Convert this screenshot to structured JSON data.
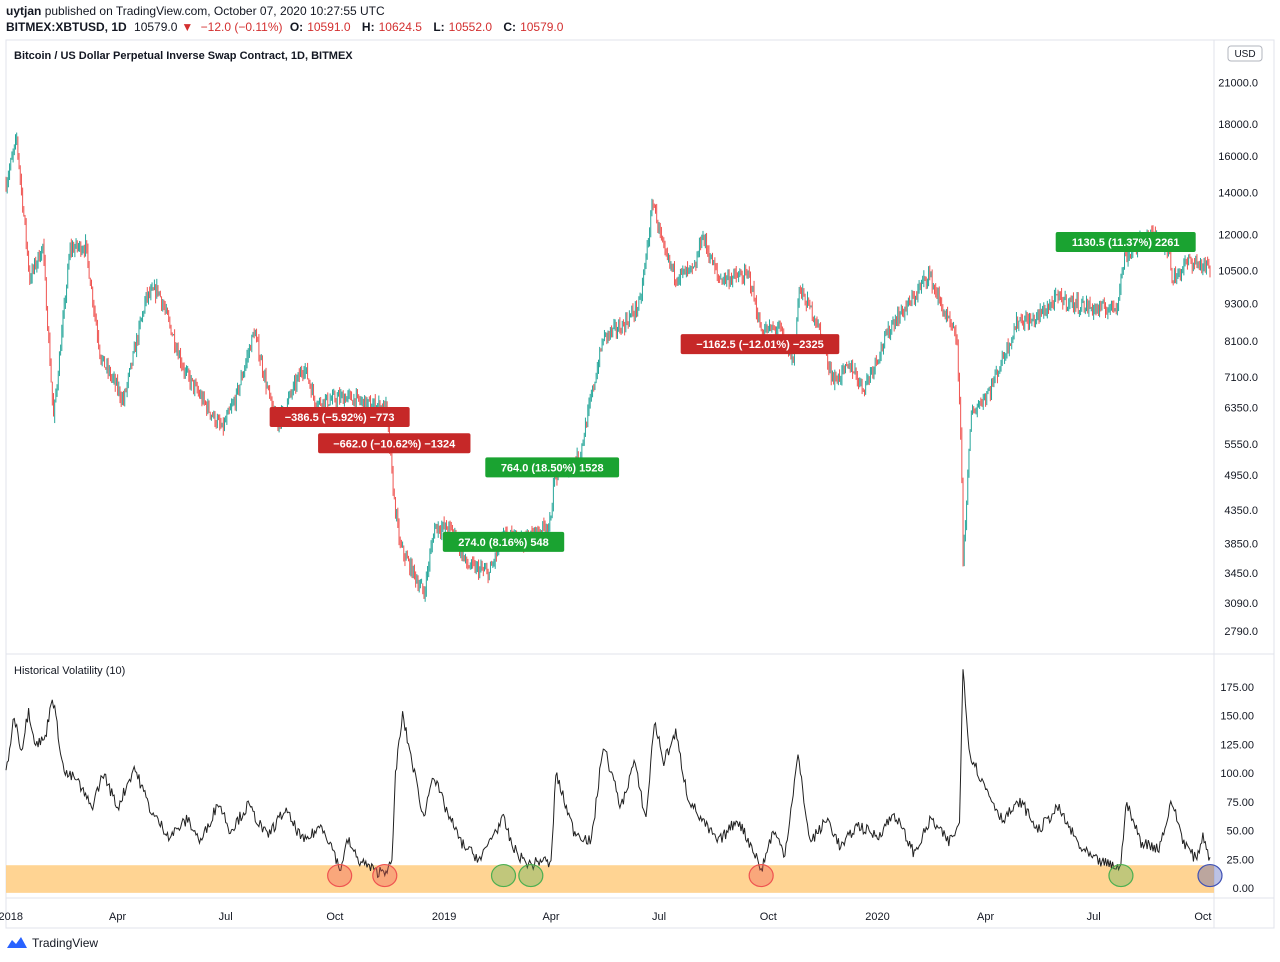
{
  "header": {
    "author": "uytjan",
    "published_text": "published on TradingView.com, October 07, 2020 10:27:55 UTC",
    "symbol": "BITMEX:XBTUSD, 1D",
    "last": "10579.0",
    "change": "−12.0 (−0.11%)",
    "o_label": "O:",
    "o_value": "10591.0",
    "h_label": "H:",
    "h_value": "10624.5",
    "l_label": "L:",
    "l_value": "10552.0",
    "c_label": "C:",
    "c_value": "10579.0"
  },
  "footer": {
    "brand": "TradingView"
  },
  "chart_data": [
    {
      "type": "candlestick",
      "title": "Bitcoin / US Dollar Perpetual Inverse Swap Contract, 1D, BITMEX",
      "scale": "log",
      "currency_label": "USD",
      "ylim": [
        2600,
        24000
      ],
      "y_ticks": [
        21000,
        18000,
        16000,
        14000,
        12000,
        10500,
        9300,
        8100,
        7100,
        6350,
        5550,
        4950,
        4350,
        3850,
        3450,
        3090,
        2790
      ],
      "x_ticks": [
        "2018",
        "Apr",
        "Jul",
        "Oct",
        "2019",
        "Apr",
        "Jul",
        "Oct",
        "2020",
        "Apr",
        "Jul",
        "Oct"
      ],
      "x_tick_dates": [
        "2018-01-01",
        "2018-04-01",
        "2018-07-01",
        "2018-10-01",
        "2019-01-01",
        "2019-04-01",
        "2019-07-01",
        "2019-10-01",
        "2020-01-01",
        "2020-04-01",
        "2020-07-01",
        "2020-10-01"
      ],
      "x_range": [
        "2017-12-28",
        "2020-10-07"
      ],
      "price_path": [
        [
          "2017-12-28",
          14500
        ],
        [
          "2018-01-06",
          17000
        ],
        [
          "2018-01-17",
          10200
        ],
        [
          "2018-01-28",
          11500
        ],
        [
          "2018-02-06",
          6100
        ],
        [
          "2018-02-20",
          11400
        ],
        [
          "2018-03-05",
          11500
        ],
        [
          "2018-03-18",
          7600
        ],
        [
          "2018-04-01",
          6800
        ],
        [
          "2018-04-06",
          6500
        ],
        [
          "2018-04-25",
          9500
        ],
        [
          "2018-05-05",
          9800
        ],
        [
          "2018-05-28",
          7200
        ],
        [
          "2018-06-12",
          6500
        ],
        [
          "2018-06-28",
          5850
        ],
        [
          "2018-07-10",
          6600
        ],
        [
          "2018-07-25",
          8400
        ],
        [
          "2018-08-10",
          6200
        ],
        [
          "2018-08-14",
          6000
        ],
        [
          "2018-09-05",
          7400
        ],
        [
          "2018-09-15",
          6450
        ],
        [
          "2018-10-10",
          6600
        ],
        [
          "2018-11-01",
          6400
        ],
        [
          "2018-11-13",
          6350
        ],
        [
          "2018-11-20",
          4500
        ],
        [
          "2018-11-25",
          3800
        ],
        [
          "2018-12-15",
          3200
        ],
        [
          "2018-12-24",
          4100
        ],
        [
          "2019-01-08",
          4050
        ],
        [
          "2019-01-20",
          3550
        ],
        [
          "2019-02-08",
          3450
        ],
        [
          "2019-02-20",
          3950
        ],
        [
          "2019-03-10",
          3900
        ],
        [
          "2019-04-01",
          4150
        ],
        [
          "2019-04-03",
          4900
        ],
        [
          "2019-04-25",
          5300
        ],
        [
          "2019-05-15",
          8200
        ],
        [
          "2019-06-01",
          8600
        ],
        [
          "2019-06-15",
          9300
        ],
        [
          "2019-06-26",
          13600
        ],
        [
          "2019-07-05",
          11200
        ],
        [
          "2019-07-15",
          10300
        ],
        [
          "2019-07-31",
          10500
        ],
        [
          "2019-08-06",
          12000
        ],
        [
          "2019-08-20",
          10200
        ],
        [
          "2019-09-15",
          10300
        ],
        [
          "2019-09-25",
          8400
        ],
        [
          "2019-10-10",
          8500
        ],
        [
          "2019-10-22",
          7500
        ],
        [
          "2019-10-27",
          9800
        ],
        [
          "2019-11-10",
          8800
        ],
        [
          "2019-11-25",
          7000
        ],
        [
          "2019-12-10",
          7400
        ],
        [
          "2019-12-20",
          6800
        ],
        [
          "2020-01-14",
          8700
        ],
        [
          "2020-01-30",
          9400
        ],
        [
          "2020-02-13",
          10400
        ],
        [
          "2020-02-26",
          9000
        ],
        [
          "2020-03-08",
          8100
        ],
        [
          "2020-03-12",
          5000
        ],
        [
          "2020-03-13",
          3600
        ],
        [
          "2020-03-20",
          6200
        ],
        [
          "2020-04-05",
          6800
        ],
        [
          "2020-04-29",
          8800
        ],
        [
          "2020-05-10",
          8700
        ],
        [
          "2020-06-01",
          9500
        ],
        [
          "2020-06-15",
          9300
        ],
        [
          "2020-07-05",
          9100
        ],
        [
          "2020-07-20",
          9200
        ],
        [
          "2020-07-27",
          11000
        ],
        [
          "2020-08-17",
          12000
        ],
        [
          "2020-09-02",
          11500
        ],
        [
          "2020-09-05",
          10200
        ],
        [
          "2020-09-20",
          10900
        ],
        [
          "2020-10-07",
          10579
        ]
      ],
      "trades": [
        {
          "label": "−386.5 (−5.92%) −773",
          "kind": "loss",
          "date": "2018-10-05",
          "price": 6500
        },
        {
          "label": "−662.0 (−10.62%) −1324",
          "kind": "loss",
          "date": "2018-11-20",
          "price": 5900
        },
        {
          "label": "274.0 (8.16%) 548",
          "kind": "gain",
          "date": "2019-02-20",
          "price": 3650
        },
        {
          "label": "764.0 (18.50%) 1528",
          "kind": "gain",
          "date": "2019-04-02",
          "price": 4800
        },
        {
          "label": "−1162.5 (−12.01%) −2325",
          "kind": "loss",
          "date": "2019-09-24",
          "price": 8500
        },
        {
          "label": "1130.5 (11.37%) 2261",
          "kind": "gain",
          "date": "2020-07-28",
          "price": 11000
        }
      ]
    },
    {
      "type": "line",
      "title": "Historical Volatility (10)",
      "ylim": [
        -5,
        200
      ],
      "y_ticks": [
        175,
        150,
        125,
        100,
        75,
        50,
        25,
        0
      ],
      "y_tick_labels": [
        "175.00",
        "150.00",
        "125.00",
        "100.00",
        "75.00",
        "50.00",
        "25.00",
        "0.00"
      ],
      "band": [
        0,
        20
      ],
      "x_range": [
        "2017-12-28",
        "2020-10-07"
      ],
      "series": [
        {
          "points": [
            [
              "2017-12-28",
              100
            ],
            [
              "2018-01-04",
              150
            ],
            [
              "2018-01-10",
              120
            ],
            [
              "2018-01-16",
              155
            ],
            [
              "2018-01-22",
              125
            ],
            [
              "2018-01-30",
              130
            ],
            [
              "2018-02-05",
              168
            ],
            [
              "2018-02-15",
              100
            ],
            [
              "2018-02-25",
              95
            ],
            [
              "2018-03-10",
              70
            ],
            [
              "2018-03-20",
              100
            ],
            [
              "2018-04-01",
              70
            ],
            [
              "2018-04-15",
              105
            ],
            [
              "2018-04-30",
              65
            ],
            [
              "2018-05-15",
              45
            ],
            [
              "2018-05-30",
              60
            ],
            [
              "2018-06-10",
              40
            ],
            [
              "2018-06-25",
              75
            ],
            [
              "2018-07-05",
              50
            ],
            [
              "2018-07-20",
              72
            ],
            [
              "2018-08-05",
              45
            ],
            [
              "2018-08-20",
              68
            ],
            [
              "2018-09-05",
              40
            ],
            [
              "2018-09-20",
              55
            ],
            [
              "2018-10-01",
              30
            ],
            [
              "2018-10-05",
              15
            ],
            [
              "2018-10-12",
              42
            ],
            [
              "2018-10-20",
              25
            ],
            [
              "2018-10-25",
              22
            ],
            [
              "2018-11-05",
              14
            ],
            [
              "2018-11-12",
              16
            ],
            [
              "2018-11-18",
              20
            ],
            [
              "2018-11-21",
              100
            ],
            [
              "2018-11-27",
              150
            ],
            [
              "2018-12-05",
              110
            ],
            [
              "2018-12-15",
              60
            ],
            [
              "2018-12-22",
              100
            ],
            [
              "2019-01-02",
              70
            ],
            [
              "2019-01-15",
              40
            ],
            [
              "2019-01-25",
              30
            ],
            [
              "2019-02-01",
              25
            ],
            [
              "2019-02-10",
              45
            ],
            [
              "2019-02-20",
              60
            ],
            [
              "2019-02-28",
              35
            ],
            [
              "2019-03-08",
              25
            ],
            [
              "2019-03-15",
              20
            ],
            [
              "2019-03-25",
              25
            ],
            [
              "2019-04-01",
              20
            ],
            [
              "2019-04-05",
              100
            ],
            [
              "2019-04-20",
              50
            ],
            [
              "2019-05-05",
              40
            ],
            [
              "2019-05-15",
              125
            ],
            [
              "2019-05-30",
              70
            ],
            [
              "2019-06-10",
              110
            ],
            [
              "2019-06-20",
              60
            ],
            [
              "2019-06-27",
              145
            ],
            [
              "2019-07-05",
              110
            ],
            [
              "2019-07-15",
              135
            ],
            [
              "2019-07-25",
              80
            ],
            [
              "2019-08-05",
              60
            ],
            [
              "2019-08-20",
              40
            ],
            [
              "2019-09-05",
              60
            ],
            [
              "2019-09-20",
              30
            ],
            [
              "2019-09-25",
              15
            ],
            [
              "2019-10-05",
              50
            ],
            [
              "2019-10-15",
              30
            ],
            [
              "2019-10-26",
              115
            ],
            [
              "2019-11-05",
              40
            ],
            [
              "2019-11-20",
              60
            ],
            [
              "2019-12-01",
              35
            ],
            [
              "2019-12-15",
              55
            ],
            [
              "2020-01-01",
              45
            ],
            [
              "2020-01-15",
              65
            ],
            [
              "2020-02-01",
              30
            ],
            [
              "2020-02-15",
              60
            ],
            [
              "2020-03-01",
              40
            ],
            [
              "2020-03-10",
              55
            ],
            [
              "2020-03-13",
              195
            ],
            [
              "2020-03-18",
              120
            ],
            [
              "2020-03-28",
              95
            ],
            [
              "2020-04-15",
              60
            ],
            [
              "2020-05-01",
              75
            ],
            [
              "2020-05-15",
              50
            ],
            [
              "2020-06-01",
              70
            ],
            [
              "2020-06-20",
              35
            ],
            [
              "2020-07-01",
              25
            ],
            [
              "2020-07-15",
              20
            ],
            [
              "2020-07-24",
              18
            ],
            [
              "2020-07-28",
              75
            ],
            [
              "2020-08-10",
              40
            ],
            [
              "2020-08-25",
              35
            ],
            [
              "2020-09-05",
              75
            ],
            [
              "2020-09-15",
              40
            ],
            [
              "2020-09-25",
              25
            ],
            [
              "2020-10-01",
              45
            ],
            [
              "2020-10-05",
              35
            ],
            [
              "2020-10-07",
              22
            ]
          ]
        }
      ],
      "circles": [
        {
          "date": "2018-10-05",
          "color": "#ef5350"
        },
        {
          "date": "2018-11-12",
          "color": "#ef5350"
        },
        {
          "date": "2019-02-20",
          "color": "#4caf50"
        },
        {
          "date": "2019-03-15",
          "color": "#4caf50"
        },
        {
          "date": "2019-09-25",
          "color": "#ef5350"
        },
        {
          "date": "2020-07-24",
          "color": "#4caf50"
        },
        {
          "date": "2020-10-07",
          "color": "#3f51b5"
        }
      ]
    }
  ]
}
